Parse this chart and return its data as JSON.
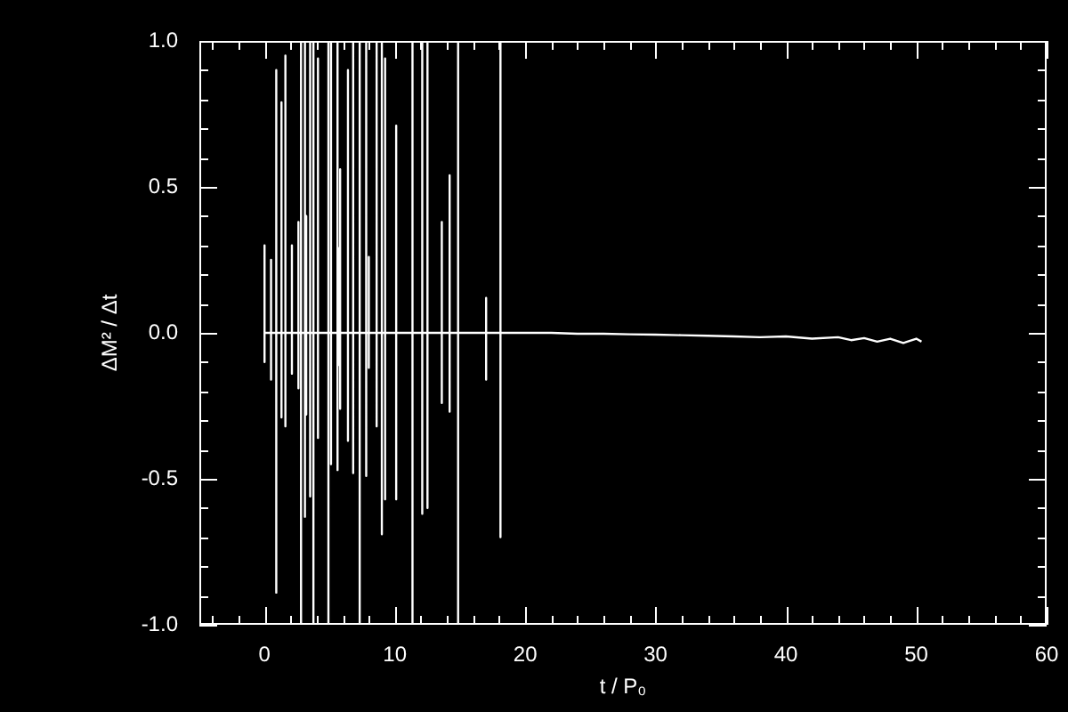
{
  "chart_data": {
    "type": "line",
    "xlabel": "t / P₀",
    "ylabel": "ΔM² / Δt",
    "xlim": [
      -5,
      60
    ],
    "ylim": [
      -1,
      1
    ],
    "xticks": [
      {
        "value": -4,
        "label": null
      },
      {
        "value": -2,
        "label": null
      },
      0,
      {
        "value": 2,
        "label": null
      },
      {
        "value": 4,
        "label": null
      },
      {
        "value": 6,
        "label": null
      },
      {
        "value": 8,
        "label": null
      },
      10,
      {
        "value": 12,
        "label": null
      },
      {
        "value": 14,
        "label": null
      },
      {
        "value": 16,
        "label": null
      },
      {
        "value": 18,
        "label": null
      },
      20,
      {
        "value": 22,
        "label": null
      },
      {
        "value": 24,
        "label": null
      },
      {
        "value": 26,
        "label": null
      },
      {
        "value": 28,
        "label": null
      },
      30,
      {
        "value": 32,
        "label": null
      },
      {
        "value": 34,
        "label": null
      },
      {
        "value": 36,
        "label": null
      },
      {
        "value": 38,
        "label": null
      },
      40,
      {
        "value": 42,
        "label": null
      },
      {
        "value": 44,
        "label": null
      },
      {
        "value": 46,
        "label": null
      },
      {
        "value": 48,
        "label": null
      },
      50,
      {
        "value": 52,
        "label": null
      },
      {
        "value": 54,
        "label": null
      },
      {
        "value": 56,
        "label": null
      },
      {
        "value": 58,
        "label": null
      },
      60
    ],
    "yticks": [
      {
        "value": -1,
        "label": "-1.0"
      },
      {
        "value": -0.9,
        "label": null
      },
      {
        "value": -0.8,
        "label": null
      },
      {
        "value": -0.7,
        "label": null
      },
      {
        "value": -0.6,
        "label": null
      },
      {
        "value": -0.5,
        "label": "-0.5"
      },
      {
        "value": -0.4,
        "label": null
      },
      {
        "value": -0.3,
        "label": null
      },
      {
        "value": -0.2,
        "label": null
      },
      {
        "value": -0.1,
        "label": null
      },
      {
        "value": 0,
        "label": "0.0"
      },
      {
        "value": 0.1,
        "label": null
      },
      {
        "value": 0.2,
        "label": null
      },
      {
        "value": 0.3,
        "label": null
      },
      {
        "value": 0.4,
        "label": null
      },
      {
        "value": 0.5,
        "label": "0.5"
      },
      {
        "value": 0.6,
        "label": null
      },
      {
        "value": 0.7,
        "label": null
      },
      {
        "value": 0.8,
        "label": null
      },
      {
        "value": 0.9,
        "label": null
      },
      {
        "value": 1,
        "label": "1.0"
      }
    ],
    "grid": false,
    "legend": false,
    "marker": "none",
    "line_style": "solid",
    "series": [
      {
        "color": "#ffffff",
        "x": [
          0,
          0,
          0,
          0,
          0.5,
          0.5,
          0.5,
          0.5,
          0.9,
          0.9,
          0.9,
          0.9,
          1.3,
          1.3,
          1.3,
          1.3,
          1.6,
          1.6,
          1.6,
          1.6,
          2.1,
          2.1,
          2.1,
          2.1,
          2.6,
          2.6,
          2.6,
          2.6,
          2.8,
          2.8,
          2.8,
          2.8,
          3.1,
          3.1,
          3.1,
          3.1,
          3.2,
          3.2,
          3.2,
          3.2,
          3.5,
          3.5,
          3.5,
          3.5,
          3.75,
          3.75,
          3.75,
          3.75,
          4.1,
          4.1,
          4.1,
          4.1,
          4.9,
          4.9,
          4.9,
          4.9,
          5.1,
          5.1,
          5.1,
          5.1,
          5.6,
          5.6,
          5.6,
          5.6,
          5.7,
          5.7,
          5.7,
          5.7,
          5.8,
          5.8,
          5.8,
          5.8,
          6.4,
          6.4,
          6.4,
          6.4,
          6.8,
          6.8,
          6.8,
          6.8,
          7.3,
          7.3,
          7.3,
          7.3,
          7.8,
          7.8,
          7.8,
          7.8,
          8.0,
          8.0,
          8.0,
          8.0,
          8.6,
          8.6,
          8.6,
          8.6,
          9.0,
          9.0,
          9.0,
          9.0,
          9.25,
          9.25,
          9.25,
          9.25,
          10.1,
          10.1,
          10.1,
          10.1,
          11.35,
          11.35,
          11.35,
          11.35,
          12.1,
          12.1,
          12.1,
          12.1,
          12.5,
          12.5,
          12.5,
          12.5,
          13.6,
          13.6,
          13.6,
          13.6,
          14.2,
          14.2,
          14.2,
          14.2,
          14.85,
          14.85,
          14.85,
          14.85,
          17.0,
          17.0,
          17.0,
          17.0,
          18.1,
          18.1,
          18.1,
          18.1,
          20,
          22,
          24,
          26,
          28,
          30,
          32,
          34,
          36,
          38,
          40,
          42,
          44,
          45,
          46,
          47,
          48,
          49,
          50,
          50.4
        ],
        "values": [
          0,
          0.3,
          -0.1,
          0,
          0,
          0.25,
          -0.16,
          0,
          0,
          0.9,
          -0.89,
          0,
          0,
          0.79,
          -0.29,
          0,
          0,
          0.95,
          -0.32,
          0,
          0,
          0.3,
          -0.14,
          0,
          0,
          0.38,
          -0.19,
          0,
          0,
          1,
          -1,
          0,
          0,
          1,
          -0.63,
          0,
          0,
          0.4,
          -0.28,
          0,
          0,
          1,
          -0.56,
          0,
          0,
          1,
          -1,
          0,
          0,
          0.94,
          -0.36,
          0,
          0,
          1,
          -1,
          0,
          0,
          1,
          -0.45,
          0,
          0,
          1,
          -0.47,
          0,
          0,
          0.29,
          -0.11,
          0,
          0,
          0.56,
          -0.26,
          0,
          0,
          0.9,
          -0.37,
          0,
          0,
          1,
          -0.48,
          0,
          0,
          1,
          -1,
          0,
          0,
          1,
          -0.49,
          0,
          0,
          0.26,
          -0.12,
          0,
          0,
          1,
          -0.32,
          0,
          0,
          1,
          -0.69,
          0,
          0,
          0.94,
          -0.57,
          0,
          0,
          0.71,
          -0.57,
          0,
          0,
          1,
          -1,
          0,
          0,
          1,
          -0.62,
          0,
          0,
          1,
          -0.6,
          0,
          0,
          0.38,
          -0.24,
          0,
          0,
          0.54,
          -0.27,
          0,
          0,
          1,
          -1,
          0,
          0,
          0.12,
          -0.16,
          0,
          0,
          1,
          -0.7,
          0,
          0,
          0,
          -0.003,
          -0.003,
          -0.005,
          -0.006,
          -0.008,
          -0.01,
          -0.012,
          -0.015,
          -0.012,
          -0.02,
          -0.015,
          -0.025,
          -0.018,
          -0.03,
          -0.02,
          -0.035,
          -0.02,
          -0.03
        ]
      }
    ]
  }
}
